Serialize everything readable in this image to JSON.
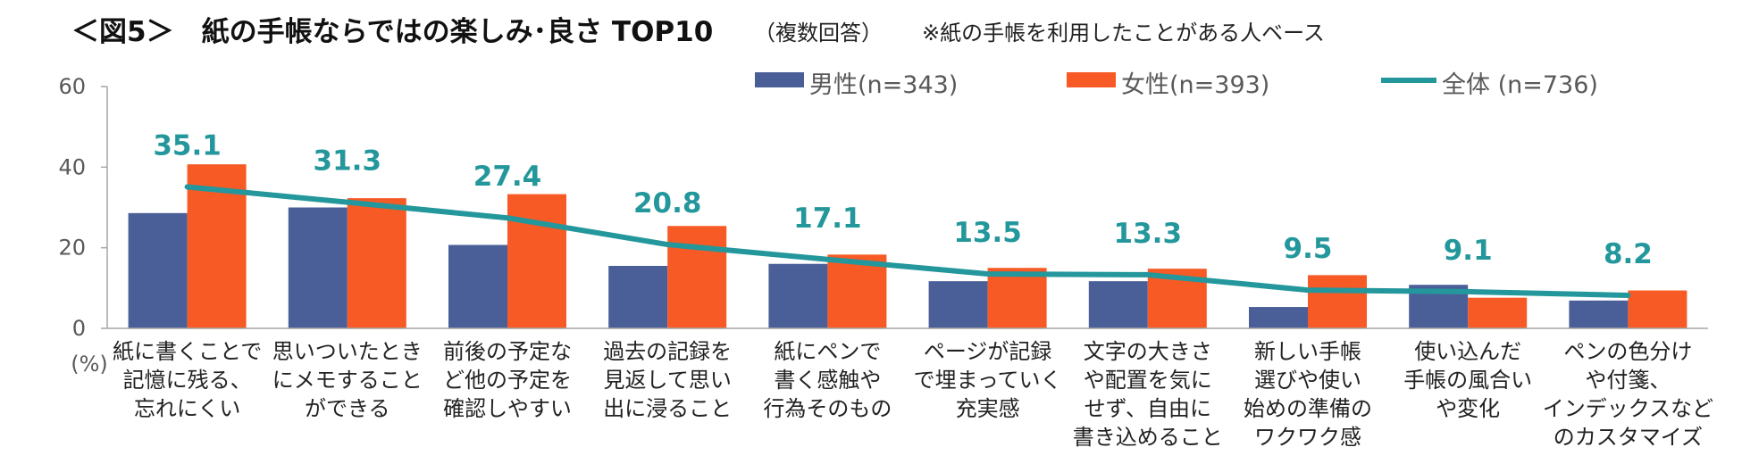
{
  "title": {
    "main": "＜図5＞　紙の手帳ならではの楽しみ･良さ TOP10",
    "sub": "（複数回答）",
    "note": "※紙の手帳を利用したことがある人ベース"
  },
  "colors": {
    "male": "#4a5f98",
    "female": "#f75a25",
    "total": "#23979b",
    "axis": "#a6a6a6"
  },
  "chart_data": {
    "type": "bar",
    "title": "＜図5＞　紙の手帳ならではの楽しみ･良さ TOP10",
    "ylabel": "(%)",
    "ylim": [
      0,
      60
    ],
    "yticks": [
      "0",
      "20",
      "40",
      "60"
    ],
    "grid": false,
    "legend_position": "top-right",
    "categories": [
      [
        "紙に書くことで",
        "記憶に残る、",
        "忘れにくい"
      ],
      [
        "思いついたとき",
        "にメモすること",
        "ができる"
      ],
      [
        "前後の予定な",
        "ど他の予定を",
        "確認しやすい"
      ],
      [
        "過去の記録を",
        "見返して思い",
        "出に浸ること"
      ],
      [
        "紙にペンで",
        "書く感触や",
        "行為そのもの"
      ],
      [
        "ページが記録",
        "で埋まっていく",
        "充実感"
      ],
      [
        "文字の大きさ",
        "や配置を気に",
        "せず、自由に",
        "書き込めること"
      ],
      [
        "新しい手帳",
        "選びや使い",
        "始めの準備の",
        "ワクワク感"
      ],
      [
        "使い込んだ",
        "手帳の風合い",
        "や変化"
      ],
      [
        "ペンの色分け",
        "や付箋、",
        "インデックスなど",
        "のカスタマイズ"
      ]
    ],
    "series": [
      {
        "name": "男性(n=343)",
        "type": "bar",
        "values": [
          28.6,
          30.0,
          20.7,
          15.5,
          16.0,
          11.7,
          11.7,
          5.3,
          10.8,
          6.9
        ]
      },
      {
        "name": "女性(n=393)",
        "type": "bar",
        "values": [
          40.7,
          32.3,
          33.3,
          25.4,
          18.3,
          15.0,
          14.8,
          13.2,
          7.6,
          9.4
        ]
      },
      {
        "name": "全体 (n=736)",
        "type": "line",
        "values": [
          35.1,
          31.3,
          27.4,
          20.8,
          17.1,
          13.5,
          13.3,
          9.5,
          9.1,
          8.2
        ],
        "labels": [
          "35.1",
          "31.3",
          "27.4",
          "20.8",
          "17.1",
          "13.5",
          "13.3",
          "9.5",
          "9.1",
          "8.2"
        ]
      }
    ]
  }
}
